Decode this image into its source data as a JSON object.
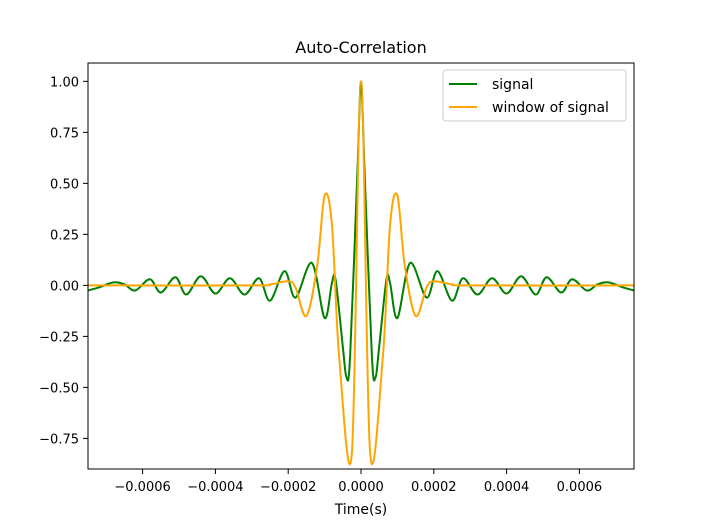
{
  "chart_data": {
    "type": "line",
    "title": "Auto-Correlation",
    "xlabel": "Time(s)",
    "ylabel": "",
    "xlim": [
      -0.00075,
      0.00075
    ],
    "ylim": [
      -0.9,
      1.09
    ],
    "xticks": [
      -0.0006,
      -0.0004,
      -0.0002,
      0.0,
      0.0002,
      0.0004,
      0.0006
    ],
    "xtick_labels": [
      "−0.0006",
      "−0.0004",
      "−0.0002",
      "0.0000",
      "0.0002",
      "0.0004",
      "0.0006"
    ],
    "yticks": [
      -0.75,
      -0.5,
      -0.25,
      0.0,
      0.25,
      0.5,
      0.75,
      1.0
    ],
    "ytick_labels": [
      "−0.75",
      "−0.50",
      "−0.25",
      "0.00",
      "0.25",
      "0.50",
      "0.75",
      "1.00"
    ],
    "grid": false,
    "legend_position": "top-right",
    "series": [
      {
        "name": "signal",
        "color": "#008000",
        "points": [
          [
            -0.00075,
            -0.025
          ],
          [
            -0.00072,
            -0.01
          ],
          [
            -0.00068,
            0.015
          ],
          [
            -0.00065,
            0.005
          ],
          [
            -0.00062,
            -0.025
          ],
          [
            -0.00058,
            0.03
          ],
          [
            -0.00055,
            -0.035
          ],
          [
            -0.00051,
            0.04
          ],
          [
            -0.00048,
            -0.045
          ],
          [
            -0.00044,
            0.045
          ],
          [
            -0.0004,
            -0.04
          ],
          [
            -0.00036,
            0.035
          ],
          [
            -0.00032,
            -0.045
          ],
          [
            -0.00028,
            0.035
          ],
          [
            -0.00025,
            -0.075
          ],
          [
            -0.00021,
            0.07
          ],
          [
            -0.00018,
            -0.06
          ],
          [
            -0.000135,
            0.11
          ],
          [
            -0.0001,
            -0.16
          ],
          [
            -8e-05,
            0.01
          ],
          [
            -7e-05,
            0.03
          ],
          [
            -5e-05,
            -0.3
          ],
          [
            -4e-05,
            -0.45
          ],
          [
            -3e-05,
            -0.35
          ],
          [
            -1e-05,
            0.55
          ],
          [
            0.0,
            1.0
          ],
          [
            1e-05,
            0.55
          ],
          [
            3e-05,
            -0.35
          ],
          [
            4e-05,
            -0.45
          ],
          [
            5e-05,
            -0.3
          ],
          [
            7e-05,
            0.03
          ],
          [
            8e-05,
            0.01
          ],
          [
            0.0001,
            -0.16
          ],
          [
            0.000135,
            0.11
          ],
          [
            0.00018,
            -0.06
          ],
          [
            0.00021,
            0.07
          ],
          [
            0.00025,
            -0.075
          ],
          [
            0.00028,
            0.035
          ],
          [
            0.00032,
            -0.045
          ],
          [
            0.00036,
            0.035
          ],
          [
            0.0004,
            -0.04
          ],
          [
            0.00044,
            0.045
          ],
          [
            0.00048,
            -0.045
          ],
          [
            0.00051,
            0.04
          ],
          [
            0.00055,
            -0.035
          ],
          [
            0.00058,
            0.03
          ],
          [
            0.00062,
            -0.025
          ],
          [
            0.00065,
            0.005
          ],
          [
            0.00068,
            0.015
          ],
          [
            0.00072,
            -0.01
          ],
          [
            0.00075,
            -0.025
          ]
        ]
      },
      {
        "name": "window of signal",
        "color": "#ffa500",
        "points": [
          [
            -0.00075,
            0.0
          ],
          [
            -0.0003,
            0.0
          ],
          [
            -0.00025,
            0.005
          ],
          [
            -0.0002,
            0.02
          ],
          [
            -0.00018,
            -0.01
          ],
          [
            -0.00015,
            -0.15
          ],
          [
            -0.00012,
            0.1
          ],
          [
            -0.0001,
            0.44
          ],
          [
            -8e-05,
            0.3
          ],
          [
            -6e-05,
            -0.35
          ],
          [
            -2.5e-05,
            -0.82
          ],
          [
            0.0,
            1.0
          ],
          [
            2.5e-05,
            -0.82
          ],
          [
            6e-05,
            -0.35
          ],
          [
            8e-05,
            0.3
          ],
          [
            0.0001,
            0.44
          ],
          [
            0.00012,
            0.1
          ],
          [
            0.00015,
            -0.15
          ],
          [
            0.00018,
            -0.01
          ],
          [
            0.0002,
            0.02
          ],
          [
            0.00025,
            0.005
          ],
          [
            0.0003,
            0.0
          ],
          [
            0.00075,
            0.0
          ]
        ]
      }
    ]
  }
}
